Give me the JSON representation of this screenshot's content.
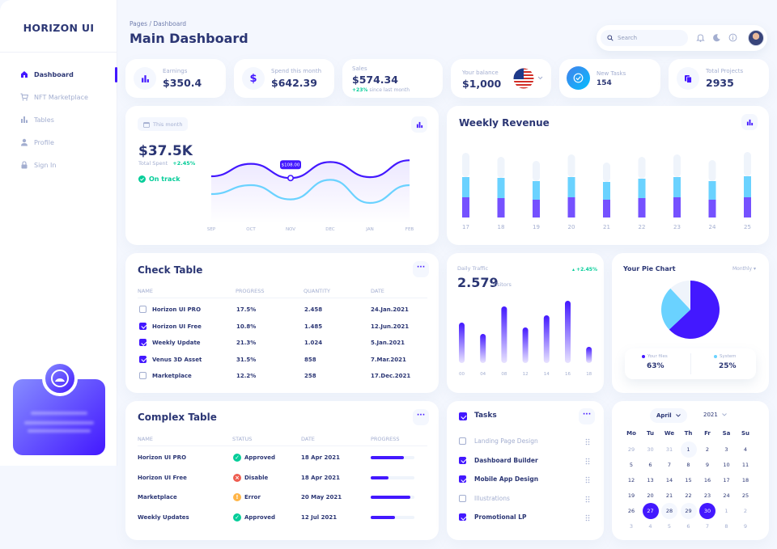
{
  "brand": "HORIZON UI",
  "sidebar": {
    "items": [
      {
        "label": "Dashboard"
      },
      {
        "label": "NFT Marketplace"
      },
      {
        "label": "Tables"
      },
      {
        "label": "Profile"
      },
      {
        "label": "Sign In"
      }
    ],
    "promo": {
      "title": "Upgrade to PRO",
      "text": "to get access to all features! Connect with Venus World!"
    }
  },
  "header": {
    "breadcrumb": "Pages / Dashboard",
    "title": "Main Dashboard",
    "search_placeholder": "Search"
  },
  "stats": [
    {
      "label": "Earnings",
      "value": "$350.4"
    },
    {
      "label": "Spend this month",
      "value": "$642.39"
    },
    {
      "label": "Sales",
      "value": "$574.34",
      "change": "+23%",
      "change_text": "since last month"
    },
    {
      "label": "Your balance",
      "value": "$1,000"
    },
    {
      "label": "New Tasks",
      "value": "154"
    },
    {
      "label": "Total Projects",
      "value": "2935"
    }
  ],
  "total_spent": {
    "period": "This month",
    "value": "$37.5K",
    "label": "Total Spent",
    "change": "+2.45%",
    "status": "On track",
    "tooltip": "$108.00",
    "months": [
      "SEP",
      "OCT",
      "NOV",
      "DEC",
      "JAN",
      "FEB"
    ]
  },
  "weekly_revenue": {
    "title": "Weekly Revenue",
    "days": [
      "17",
      "18",
      "19",
      "20",
      "21",
      "22",
      "23",
      "24",
      "25"
    ]
  },
  "check_table": {
    "title": "Check Table",
    "columns": [
      "NAME",
      "PROGRESS",
      "QUANTITY",
      "DATE"
    ],
    "rows": [
      {
        "name": "Horizon UI PRO",
        "progress": "17.5%",
        "quantity": "2.458",
        "date": "24.Jan.2021",
        "checked": false
      },
      {
        "name": "Horizon UI Free",
        "progress": "10.8%",
        "quantity": "1.485",
        "date": "12.Jun.2021",
        "checked": true
      },
      {
        "name": "Weekly Update",
        "progress": "21.3%",
        "quantity": "1.024",
        "date": "5.Jan.2021",
        "checked": true
      },
      {
        "name": "Venus 3D Asset",
        "progress": "31.5%",
        "quantity": "858",
        "date": "7.Mar.2021",
        "checked": true
      },
      {
        "name": "Marketplace",
        "progress": "12.2%",
        "quantity": "258",
        "date": "17.Dec.2021",
        "checked": false
      }
    ]
  },
  "daily_traffic": {
    "label": "Daily Traffic",
    "value": "2.579",
    "unit": "Visitors",
    "change": "+2.45%",
    "hours": [
      "00",
      "04",
      "08",
      "12",
      "14",
      "16",
      "18"
    ]
  },
  "pie": {
    "title": "Your Pie Chart",
    "period": "Monthly",
    "legend": [
      {
        "label": "Your files",
        "value": "63%",
        "color": "#4318ff"
      },
      {
        "label": "System",
        "value": "25%",
        "color": "#6ad2ff"
      }
    ]
  },
  "complex_table": {
    "title": "Complex Table",
    "columns": [
      "NAME",
      "STATUS",
      "DATE",
      "PROGRESS"
    ],
    "rows": [
      {
        "name": "Horizon UI PRO",
        "status": "Approved",
        "date": "18 Apr 2021",
        "progress": 0.75
      },
      {
        "name": "Horizon UI Free",
        "status": "Disable",
        "date": "18 Apr 2021",
        "progress": 0.4
      },
      {
        "name": "Marketplace",
        "status": "Error",
        "date": "20 May 2021",
        "progress": 0.9
      },
      {
        "name": "Weekly Updates",
        "status": "Approved",
        "date": "12 Jul 2021",
        "progress": 0.55
      }
    ]
  },
  "tasks": {
    "title": "Tasks",
    "items": [
      {
        "label": "Landing Page Design",
        "done": false
      },
      {
        "label": "Dashboard Builder",
        "done": true
      },
      {
        "label": "Mobile App Design",
        "done": true
      },
      {
        "label": "Illustrations",
        "done": false
      },
      {
        "label": "Promotional LP",
        "done": true
      }
    ]
  },
  "calendar": {
    "month": "April",
    "year": "2021",
    "weekdays": [
      "Mo",
      "Tu",
      "We",
      "Th",
      "Fr",
      "Sa",
      "Su"
    ],
    "weeks": [
      [
        "29",
        "30",
        "31",
        "1",
        "2",
        "3",
        "4"
      ],
      [
        "5",
        "6",
        "7",
        "8",
        "9",
        "10",
        "11"
      ],
      [
        "12",
        "13",
        "14",
        "15",
        "16",
        "17",
        "18"
      ],
      [
        "19",
        "20",
        "21",
        "22",
        "23",
        "24",
        "25"
      ],
      [
        "26",
        "27",
        "28",
        "29",
        "30",
        "1",
        "2"
      ],
      [
        "3",
        "4",
        "5",
        "6",
        "7",
        "8",
        "9"
      ]
    ]
  },
  "chart_data": [
    {
      "type": "line",
      "x": [
        "SEP",
        "OCT",
        "NOV",
        "DEC",
        "JAN",
        "FEB"
      ],
      "series": [
        {
          "values": [
            50,
            64,
            48,
            66,
            49,
            68
          ]
        },
        {
          "values": [
            30,
            40,
            24,
            46,
            20,
            40
          ]
        }
      ]
    },
    {
      "type": "bar",
      "title": "Weekly Revenue",
      "categories": [
        "17",
        "18",
        "19",
        "20",
        "21",
        "22",
        "23",
        "24",
        "25"
      ],
      "series": [
        {
          "values": [
            25,
            24,
            22,
            25,
            22,
            24,
            25,
            22,
            25
          ]
        },
        {
          "values": [
            25,
            25,
            23,
            25,
            22,
            24,
            25,
            23,
            26
          ]
        },
        {
          "values": [
            30,
            26,
            25,
            28,
            24,
            27,
            28,
            26,
            30
          ]
        }
      ]
    },
    {
      "type": "bar",
      "title": "Daily Traffic",
      "categories": [
        "00",
        "04",
        "08",
        "12",
        "14",
        "16",
        "18"
      ],
      "values": [
        50,
        36,
        70,
        44,
        59,
        77,
        20
      ]
    },
    {
      "type": "pie",
      "title": "Your Pie Chart",
      "categories": [
        "Your files",
        "System",
        "Other"
      ],
      "values": [
        63,
        25,
        12
      ]
    }
  ]
}
